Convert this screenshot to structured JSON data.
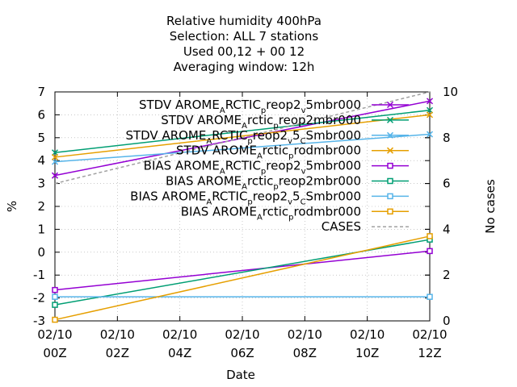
{
  "title_lines": [
    "Relative humidity 400hPa",
    "Selection: ALL      7 stations",
    "Used  00,12  + 00 12",
    "Averaging window: 12h"
  ],
  "chart_data": {
    "type": "line",
    "xlabel": "Date",
    "ylabel": "%",
    "y2label": "No cases",
    "x_ticks": [
      {
        "top": "02/10",
        "bottom": "00Z",
        "hour": 0
      },
      {
        "top": "02/10",
        "bottom": "02Z",
        "hour": 2
      },
      {
        "top": "02/10",
        "bottom": "04Z",
        "hour": 4
      },
      {
        "top": "02/10",
        "bottom": "06Z",
        "hour": 6
      },
      {
        "top": "02/10",
        "bottom": "08Z",
        "hour": 8
      },
      {
        "top": "02/10",
        "bottom": "10Z",
        "hour": 10
      },
      {
        "top": "02/10",
        "bottom": "12Z",
        "hour": 12
      }
    ],
    "xlim": [
      0,
      12
    ],
    "ylim": [
      -3,
      7
    ],
    "y_ticks": [
      -3,
      -2,
      -1,
      0,
      1,
      2,
      3,
      4,
      5,
      6,
      7
    ],
    "y2lim": [
      0,
      10
    ],
    "y2_ticks": [
      0,
      2,
      4,
      6,
      8,
      10
    ],
    "grid": true,
    "legend_position": "top-right",
    "series": [
      {
        "legend": [
          "STDV AROME",
          "A",
          "RCTIC",
          "p",
          "reop2",
          "v",
          "5mbr000"
        ],
        "color": "#9400d3",
        "marker": "x",
        "axis": "y",
        "x": [
          0,
          12
        ],
        "y": [
          3.35,
          6.6
        ]
      },
      {
        "legend": [
          "STDV AROME",
          "A",
          "rctic",
          "p",
          "reop2mbr000"
        ],
        "color": "#009e73",
        "marker": "x",
        "axis": "y",
        "x": [
          0,
          12
        ],
        "y": [
          4.35,
          6.2
        ]
      },
      {
        "legend": [
          "STDV AROME",
          "A",
          "RCTIC",
          "p",
          "reop2",
          "v",
          "5",
          "C",
          "Smbr000"
        ],
        "color": "#56b4e9",
        "marker": "x",
        "axis": "y",
        "x": [
          0,
          12
        ],
        "y": [
          3.95,
          5.15
        ]
      },
      {
        "legend": [
          "STDV AROME",
          "A",
          "rctic",
          "p",
          "rodmbr000"
        ],
        "color": "#e69f00",
        "marker": "x",
        "axis": "y",
        "x": [
          0,
          12
        ],
        "y": [
          4.15,
          6.0
        ]
      },
      {
        "legend": [
          "BIAS AROME",
          "A",
          "RCTIC",
          "p",
          "reop2",
          "v",
          "5mbr000"
        ],
        "color": "#9400d3",
        "marker": "square",
        "axis": "y",
        "x": [
          0,
          12
        ],
        "y": [
          -1.65,
          0.05
        ]
      },
      {
        "legend": [
          "BIAS AROME",
          "A",
          "rctic",
          "p",
          "reop2mbr000"
        ],
        "color": "#009e73",
        "marker": "square",
        "axis": "y",
        "x": [
          0,
          12
        ],
        "y": [
          -2.3,
          0.55
        ]
      },
      {
        "legend": [
          "BIAS AROME",
          "A",
          "RCTIC",
          "p",
          "reop2",
          "v",
          "5",
          "C",
          "Smbr000"
        ],
        "color": "#56b4e9",
        "marker": "square",
        "axis": "y",
        "x": [
          0,
          12
        ],
        "y": [
          -1.95,
          -1.95
        ]
      },
      {
        "legend": [
          "BIAS AROME",
          "A",
          "rctic",
          "p",
          "rodmbr000"
        ],
        "color": "#e69f00",
        "marker": "square",
        "axis": "y",
        "x": [
          0,
          12
        ],
        "y": [
          -2.95,
          0.7
        ]
      },
      {
        "legend": [
          "CASES"
        ],
        "color": "#a0a0a0",
        "marker": "none",
        "dashed": true,
        "axis": "y2",
        "x": [
          0,
          12
        ],
        "y": [
          6,
          10
        ]
      }
    ]
  }
}
